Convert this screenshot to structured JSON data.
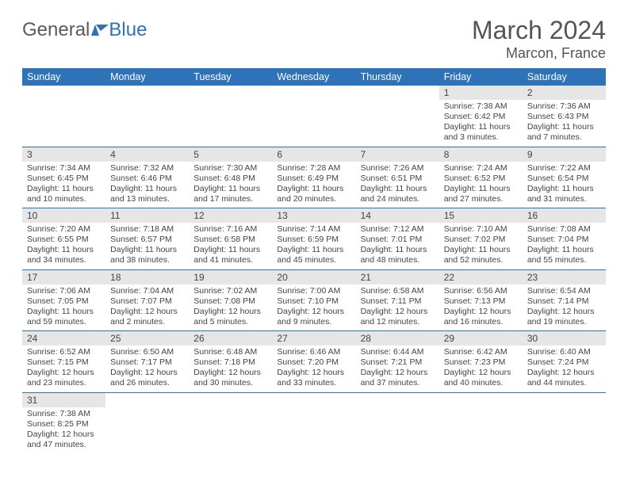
{
  "logo": {
    "part1": "General",
    "part2": "Blue"
  },
  "title": "March 2024",
  "location": "Marcon, France",
  "colors": {
    "header_bg": "#2e72b8",
    "header_text": "#ffffff",
    "daynum_bg": "#e6e6e6",
    "border": "#2e72b8",
    "text": "#444444"
  },
  "weekdays": [
    "Sunday",
    "Monday",
    "Tuesday",
    "Wednesday",
    "Thursday",
    "Friday",
    "Saturday"
  ],
  "weeks": [
    [
      null,
      null,
      null,
      null,
      null,
      {
        "n": "1",
        "sr": "Sunrise: 7:38 AM",
        "ss": "Sunset: 6:42 PM",
        "dl1": "Daylight: 11 hours",
        "dl2": "and 3 minutes."
      },
      {
        "n": "2",
        "sr": "Sunrise: 7:36 AM",
        "ss": "Sunset: 6:43 PM",
        "dl1": "Daylight: 11 hours",
        "dl2": "and 7 minutes."
      }
    ],
    [
      {
        "n": "3",
        "sr": "Sunrise: 7:34 AM",
        "ss": "Sunset: 6:45 PM",
        "dl1": "Daylight: 11 hours",
        "dl2": "and 10 minutes."
      },
      {
        "n": "4",
        "sr": "Sunrise: 7:32 AM",
        "ss": "Sunset: 6:46 PM",
        "dl1": "Daylight: 11 hours",
        "dl2": "and 13 minutes."
      },
      {
        "n": "5",
        "sr": "Sunrise: 7:30 AM",
        "ss": "Sunset: 6:48 PM",
        "dl1": "Daylight: 11 hours",
        "dl2": "and 17 minutes."
      },
      {
        "n": "6",
        "sr": "Sunrise: 7:28 AM",
        "ss": "Sunset: 6:49 PM",
        "dl1": "Daylight: 11 hours",
        "dl2": "and 20 minutes."
      },
      {
        "n": "7",
        "sr": "Sunrise: 7:26 AM",
        "ss": "Sunset: 6:51 PM",
        "dl1": "Daylight: 11 hours",
        "dl2": "and 24 minutes."
      },
      {
        "n": "8",
        "sr": "Sunrise: 7:24 AM",
        "ss": "Sunset: 6:52 PM",
        "dl1": "Daylight: 11 hours",
        "dl2": "and 27 minutes."
      },
      {
        "n": "9",
        "sr": "Sunrise: 7:22 AM",
        "ss": "Sunset: 6:54 PM",
        "dl1": "Daylight: 11 hours",
        "dl2": "and 31 minutes."
      }
    ],
    [
      {
        "n": "10",
        "sr": "Sunrise: 7:20 AM",
        "ss": "Sunset: 6:55 PM",
        "dl1": "Daylight: 11 hours",
        "dl2": "and 34 minutes."
      },
      {
        "n": "11",
        "sr": "Sunrise: 7:18 AM",
        "ss": "Sunset: 6:57 PM",
        "dl1": "Daylight: 11 hours",
        "dl2": "and 38 minutes."
      },
      {
        "n": "12",
        "sr": "Sunrise: 7:16 AM",
        "ss": "Sunset: 6:58 PM",
        "dl1": "Daylight: 11 hours",
        "dl2": "and 41 minutes."
      },
      {
        "n": "13",
        "sr": "Sunrise: 7:14 AM",
        "ss": "Sunset: 6:59 PM",
        "dl1": "Daylight: 11 hours",
        "dl2": "and 45 minutes."
      },
      {
        "n": "14",
        "sr": "Sunrise: 7:12 AM",
        "ss": "Sunset: 7:01 PM",
        "dl1": "Daylight: 11 hours",
        "dl2": "and 48 minutes."
      },
      {
        "n": "15",
        "sr": "Sunrise: 7:10 AM",
        "ss": "Sunset: 7:02 PM",
        "dl1": "Daylight: 11 hours",
        "dl2": "and 52 minutes."
      },
      {
        "n": "16",
        "sr": "Sunrise: 7:08 AM",
        "ss": "Sunset: 7:04 PM",
        "dl1": "Daylight: 11 hours",
        "dl2": "and 55 minutes."
      }
    ],
    [
      {
        "n": "17",
        "sr": "Sunrise: 7:06 AM",
        "ss": "Sunset: 7:05 PM",
        "dl1": "Daylight: 11 hours",
        "dl2": "and 59 minutes."
      },
      {
        "n": "18",
        "sr": "Sunrise: 7:04 AM",
        "ss": "Sunset: 7:07 PM",
        "dl1": "Daylight: 12 hours",
        "dl2": "and 2 minutes."
      },
      {
        "n": "19",
        "sr": "Sunrise: 7:02 AM",
        "ss": "Sunset: 7:08 PM",
        "dl1": "Daylight: 12 hours",
        "dl2": "and 5 minutes."
      },
      {
        "n": "20",
        "sr": "Sunrise: 7:00 AM",
        "ss": "Sunset: 7:10 PM",
        "dl1": "Daylight: 12 hours",
        "dl2": "and 9 minutes."
      },
      {
        "n": "21",
        "sr": "Sunrise: 6:58 AM",
        "ss": "Sunset: 7:11 PM",
        "dl1": "Daylight: 12 hours",
        "dl2": "and 12 minutes."
      },
      {
        "n": "22",
        "sr": "Sunrise: 6:56 AM",
        "ss": "Sunset: 7:13 PM",
        "dl1": "Daylight: 12 hours",
        "dl2": "and 16 minutes."
      },
      {
        "n": "23",
        "sr": "Sunrise: 6:54 AM",
        "ss": "Sunset: 7:14 PM",
        "dl1": "Daylight: 12 hours",
        "dl2": "and 19 minutes."
      }
    ],
    [
      {
        "n": "24",
        "sr": "Sunrise: 6:52 AM",
        "ss": "Sunset: 7:15 PM",
        "dl1": "Daylight: 12 hours",
        "dl2": "and 23 minutes."
      },
      {
        "n": "25",
        "sr": "Sunrise: 6:50 AM",
        "ss": "Sunset: 7:17 PM",
        "dl1": "Daylight: 12 hours",
        "dl2": "and 26 minutes."
      },
      {
        "n": "26",
        "sr": "Sunrise: 6:48 AM",
        "ss": "Sunset: 7:18 PM",
        "dl1": "Daylight: 12 hours",
        "dl2": "and 30 minutes."
      },
      {
        "n": "27",
        "sr": "Sunrise: 6:46 AM",
        "ss": "Sunset: 7:20 PM",
        "dl1": "Daylight: 12 hours",
        "dl2": "and 33 minutes."
      },
      {
        "n": "28",
        "sr": "Sunrise: 6:44 AM",
        "ss": "Sunset: 7:21 PM",
        "dl1": "Daylight: 12 hours",
        "dl2": "and 37 minutes."
      },
      {
        "n": "29",
        "sr": "Sunrise: 6:42 AM",
        "ss": "Sunset: 7:23 PM",
        "dl1": "Daylight: 12 hours",
        "dl2": "and 40 minutes."
      },
      {
        "n": "30",
        "sr": "Sunrise: 6:40 AM",
        "ss": "Sunset: 7:24 PM",
        "dl1": "Daylight: 12 hours",
        "dl2": "and 44 minutes."
      }
    ],
    [
      {
        "n": "31",
        "sr": "Sunrise: 7:38 AM",
        "ss": "Sunset: 8:25 PM",
        "dl1": "Daylight: 12 hours",
        "dl2": "and 47 minutes."
      },
      null,
      null,
      null,
      null,
      null,
      null
    ]
  ]
}
